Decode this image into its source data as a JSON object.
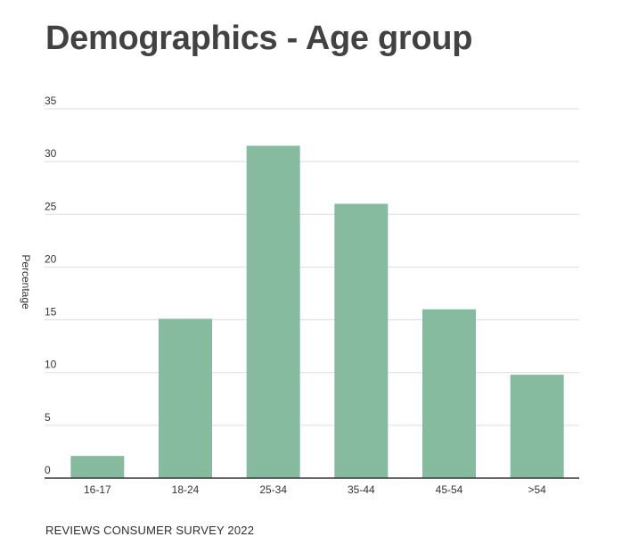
{
  "title": "Demographics - Age group",
  "footer": "REVIEWS CONSUMER SURVEY 2022",
  "chart_data": {
    "type": "bar",
    "title": "Demographics - Age group",
    "xlabel": "",
    "ylabel": "Percentage",
    "categories": [
      "16-17",
      "18-24",
      "25-34",
      "35-44",
      "45-54",
      ">54"
    ],
    "values": [
      2.1,
      15.1,
      31.5,
      26.0,
      16.0,
      9.8
    ],
    "ylim": [
      0,
      35
    ],
    "yticks": [
      0,
      5,
      10,
      15,
      20,
      25,
      30,
      35
    ],
    "grid": true,
    "bar_color": "#86bba0",
    "gridline_color": "#dddddd",
    "axis_color": "#333333"
  }
}
